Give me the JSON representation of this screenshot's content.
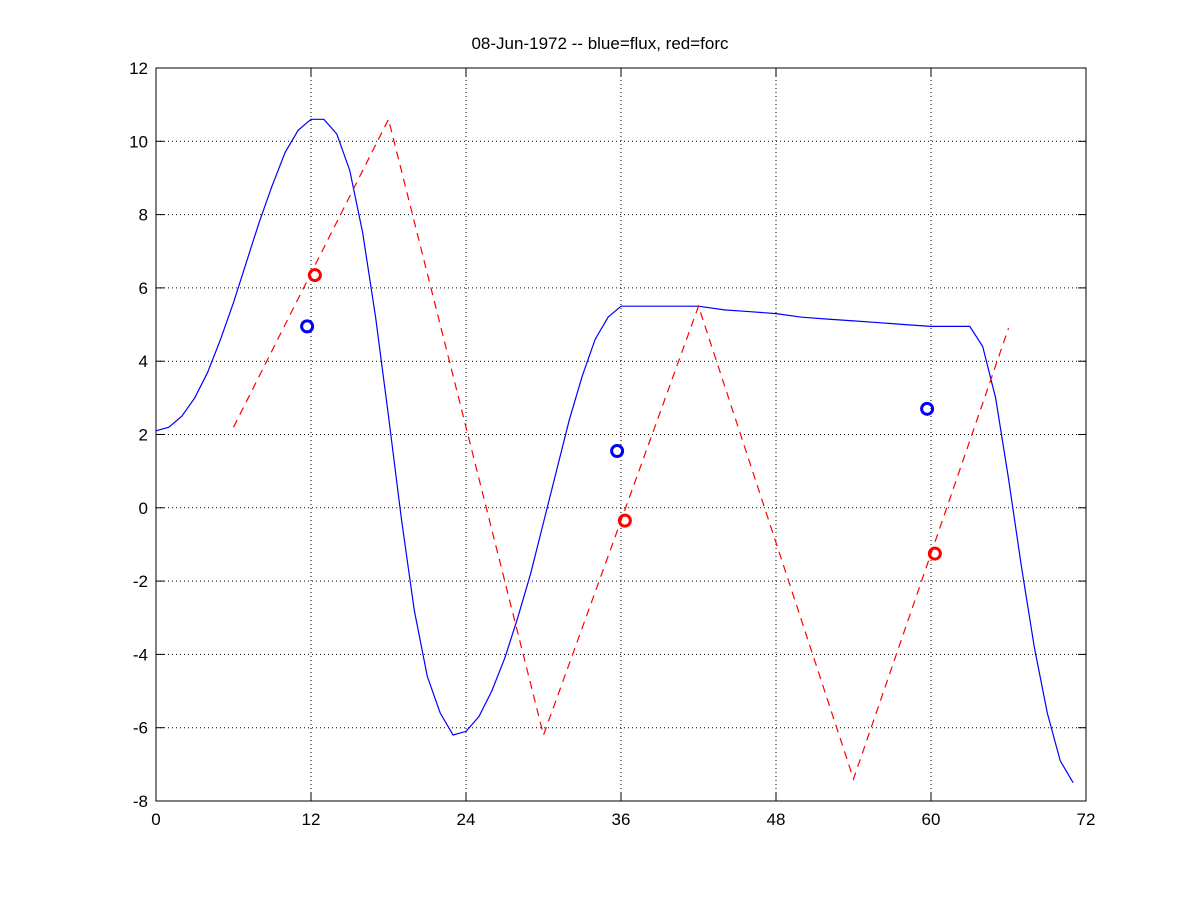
{
  "chart_data": {
    "type": "line",
    "title": "08-Jun-1972 -- blue=flux, red=forc",
    "xlabel": "",
    "ylabel": "",
    "xlim": [
      0,
      72
    ],
    "ylim": [
      -8,
      12
    ],
    "xticks": [
      0,
      12,
      24,
      36,
      48,
      60,
      72
    ],
    "yticks": [
      -8,
      -6,
      -4,
      -2,
      0,
      2,
      4,
      6,
      8,
      10,
      12
    ],
    "grid": true,
    "series": [
      {
        "color": "#0000ff",
        "style": "solid",
        "x": [
          0,
          1,
          2,
          3,
          4,
          5,
          6,
          7,
          8,
          9,
          10,
          11,
          12,
          13,
          14,
          15,
          16,
          17,
          18,
          19,
          20,
          21,
          22,
          23,
          24,
          25,
          26,
          27,
          28,
          29,
          30,
          31,
          32,
          33,
          34,
          35,
          36,
          37,
          38,
          39,
          40,
          42,
          44,
          46,
          48,
          50,
          52,
          54,
          56,
          58,
          60,
          61,
          62,
          63,
          64,
          65,
          66,
          67,
          68,
          69,
          70,
          71
        ],
        "y": [
          2.1,
          2.2,
          2.5,
          3.0,
          3.7,
          4.6,
          5.6,
          6.7,
          7.8,
          8.8,
          9.7,
          10.3,
          10.6,
          10.6,
          10.2,
          9.2,
          7.5,
          5.2,
          2.5,
          -0.3,
          -2.8,
          -4.6,
          -5.6,
          -6.2,
          -6.1,
          -5.7,
          -5.0,
          -4.1,
          -3.0,
          -1.8,
          -0.4,
          1.0,
          2.4,
          3.6,
          4.6,
          5.2,
          5.5,
          5.5,
          5.5,
          5.5,
          5.5,
          5.5,
          5.4,
          5.35,
          5.3,
          5.2,
          5.15,
          5.1,
          5.05,
          5.0,
          4.95,
          4.95,
          4.95,
          4.95,
          4.4,
          3.0,
          0.8,
          -1.6,
          -3.8,
          -5.6,
          -6.9,
          -7.5
        ]
      },
      {
        "color": "#ff0000",
        "style": "dashed",
        "x": [
          6,
          18,
          30,
          42,
          54,
          66
        ],
        "y": [
          2.2,
          10.6,
          -6.2,
          5.5,
          -7.4,
          4.9
        ]
      }
    ],
    "markers": [
      {
        "color": "#0000ff",
        "x": 11.7,
        "y": 4.95
      },
      {
        "color": "#ff0000",
        "x": 12.3,
        "y": 6.35
      },
      {
        "color": "#0000ff",
        "x": 35.7,
        "y": 1.55
      },
      {
        "color": "#ff0000",
        "x": 36.3,
        "y": -0.35
      },
      {
        "color": "#0000ff",
        "x": 59.7,
        "y": 2.7
      },
      {
        "color": "#ff0000",
        "x": 60.3,
        "y": -1.25
      }
    ]
  }
}
